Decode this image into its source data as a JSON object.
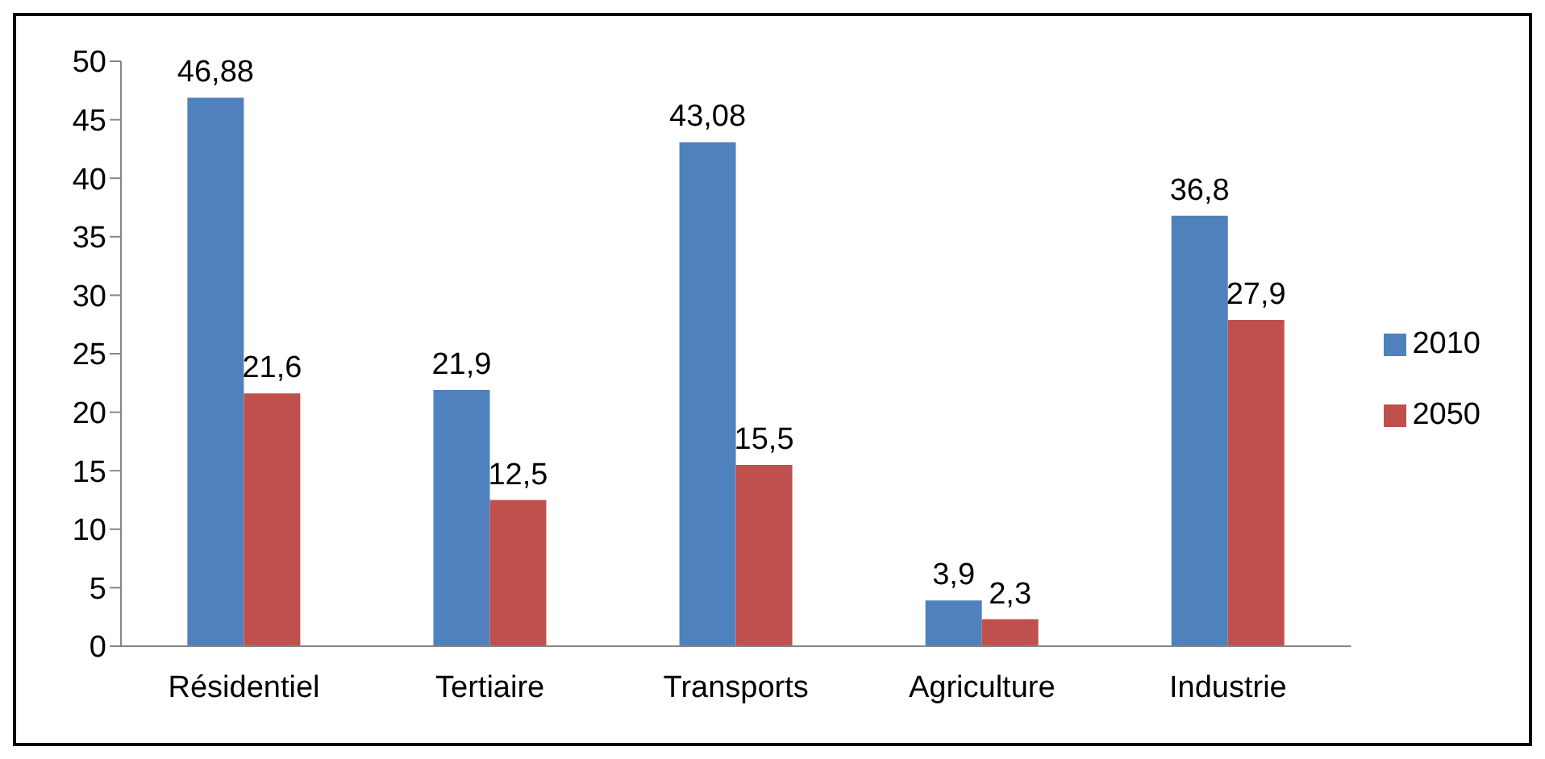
{
  "chart_data": {
    "type": "bar",
    "categories": [
      "Résidentiel",
      "Tertiaire",
      "Transports",
      "Agriculture",
      "Industrie"
    ],
    "series": [
      {
        "name": "2010",
        "color": "#4f81bd",
        "values": [
          46.88,
          21.9,
          43.08,
          3.9,
          36.8
        ],
        "value_labels": [
          "46,88",
          "21,9",
          "43,08",
          "3,9",
          "36,8"
        ]
      },
      {
        "name": "2050",
        "color": "#c0504d",
        "values": [
          21.6,
          12.5,
          15.5,
          2.3,
          27.9
        ],
        "value_labels": [
          "21,6",
          "12,5",
          "15,5",
          "2,3",
          "27,9"
        ]
      }
    ],
    "ylim": [
      0,
      50
    ],
    "yticks": [
      0,
      5,
      10,
      15,
      20,
      25,
      30,
      35,
      40,
      45,
      50
    ],
    "grid": false,
    "legend": "right"
  }
}
